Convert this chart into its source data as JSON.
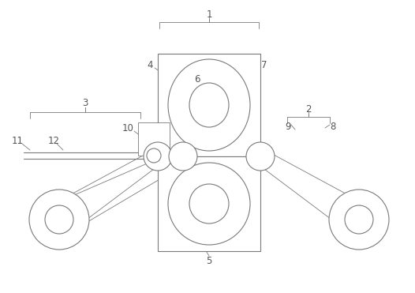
{
  "bg_color": "#ffffff",
  "line_color": "#7a7a7a",
  "lw": 0.8,
  "tlw": 0.6,
  "label_color": "#555555",
  "fig_width": 5.26,
  "fig_height": 3.71
}
